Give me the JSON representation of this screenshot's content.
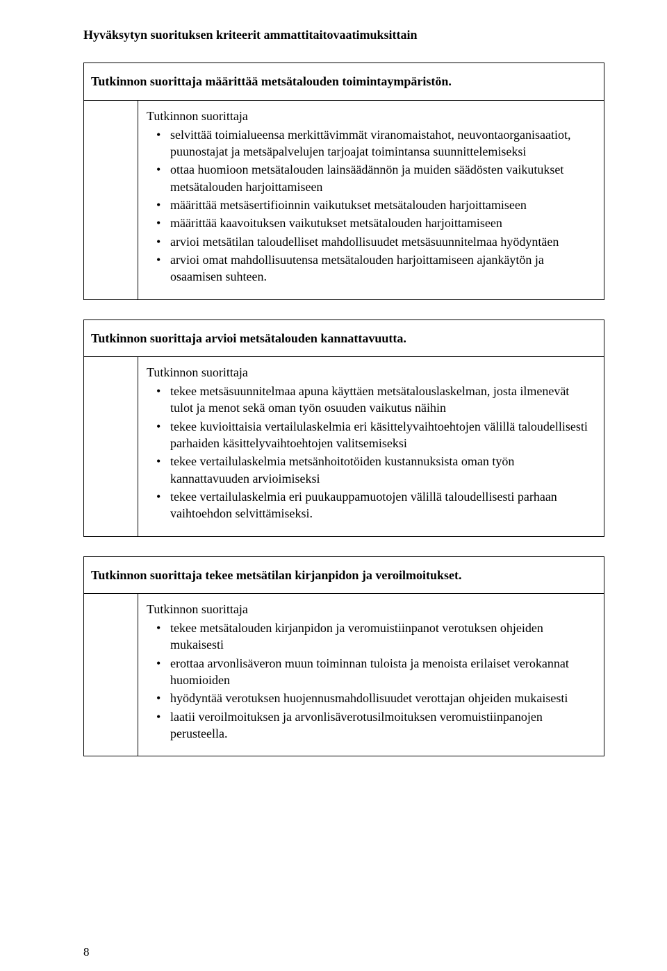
{
  "page_title": "Hyväksytyn suorituksen kriteerit ammattitaitovaatimuksittain",
  "page_number": "8",
  "sections": [
    {
      "header": "Tutkinnon suorittaja määrittää metsätalouden toimintaympäristön.",
      "lead": "Tutkinnon suorittaja",
      "bullets": [
        "selvittää toimialueensa merkittävimmät viranomaistahot, neuvontaorganisaatiot, puunostajat ja metsäpalvelujen tarjoajat toimintansa suunnittelemiseksi",
        "ottaa huomioon metsätalouden lainsäädännön ja muiden säädösten vaikutukset metsätalouden harjoittamiseen",
        "määrittää metsäsertifioinnin vaikutukset metsätalouden harjoittamiseen",
        "määrittää kaavoituksen vaikutukset metsätalouden harjoittamiseen",
        "arvioi metsätilan taloudelliset mahdollisuudet metsäsuunnitelmaa hyödyntäen",
        "arvioi omat mahdollisuutensa metsätalouden harjoittamiseen ajankäytön ja osaamisen suhteen."
      ]
    },
    {
      "header": "Tutkinnon suorittaja arvioi metsätalouden kannattavuutta.",
      "lead": "Tutkinnon suorittaja",
      "bullets": [
        "tekee metsäsuunnitelmaa apuna käyttäen metsätalouslaskelman, josta ilmenevät tulot ja menot sekä oman työn osuuden vaikutus näihin",
        "tekee kuvioittaisia vertailulaskelmia eri käsittelyvaihtoehtojen välillä taloudellisesti parhaiden käsittelyvaihtoehtojen valitsemiseksi",
        "tekee vertailulaskelmia metsänhoitotöiden kustannuksista oman työn kannattavuuden arvioimiseksi",
        "tekee vertailulaskelmia eri puukauppamuotojen välillä taloudellisesti parhaan vaihtoehdon selvittämiseksi."
      ]
    },
    {
      "header": "Tutkinnon suorittaja tekee metsätilan kirjanpidon ja veroilmoitukset.",
      "lead": "Tutkinnon suorittaja",
      "bullets": [
        "tekee metsätalouden kirjanpidon ja veromuistiinpanot verotuksen ohjeiden mukaisesti",
        "erottaa arvonlisäveron muun toiminnan tuloista ja menoista erilaiset verokannat huomioiden",
        "hyödyntää verotuksen huojennusmahdollisuudet verottajan ohjeiden mukaisesti",
        "laatii veroilmoituksen ja arvonlisäverotusilmoituksen veromuistiinpanojen perusteella."
      ]
    }
  ]
}
